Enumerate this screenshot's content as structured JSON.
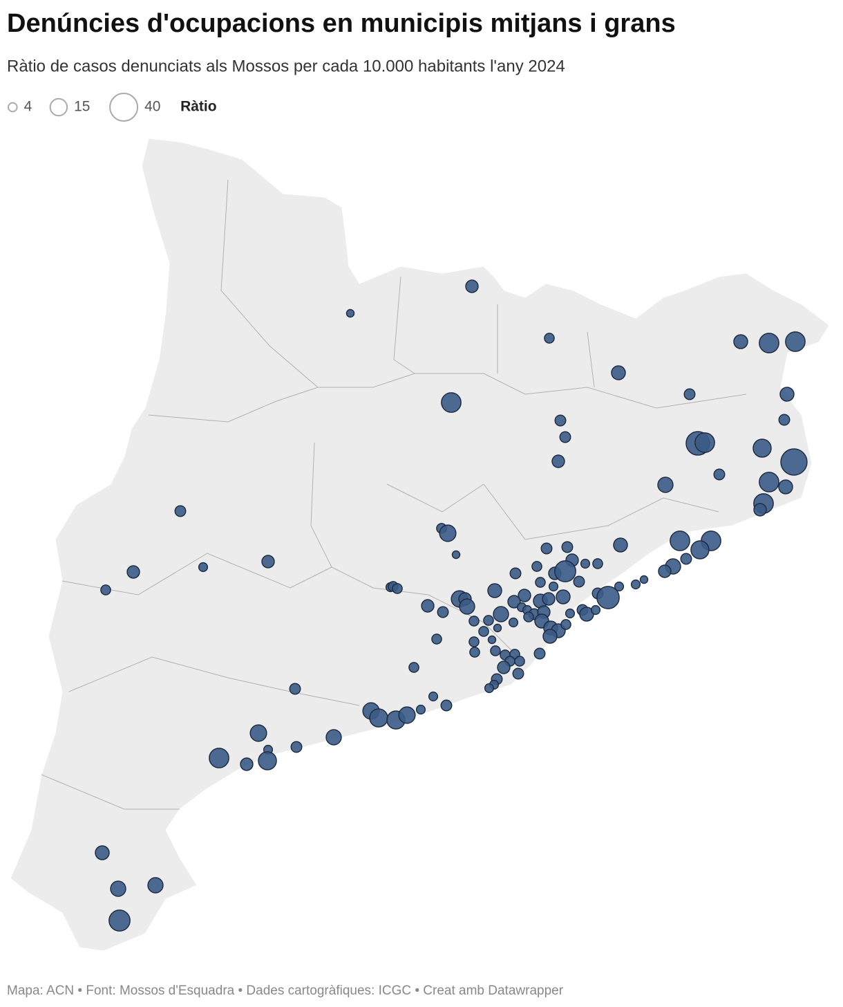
{
  "chart_data": {
    "type": "bubble-map",
    "title": "Denúncies d'ocupacions en municipis mitjans i grans",
    "subtitle": "Ràtio de casos denunciats als Mossos per cada 10.000 habitants l'any 2024",
    "size_legend": {
      "title": "Ràtio",
      "values": [
        4,
        15,
        40
      ]
    },
    "color": "#3b5b87",
    "values": [
      8,
      3,
      5,
      10,
      20,
      20,
      10,
      20,
      6,
      10,
      6,
      6,
      6,
      29,
      20,
      17,
      36,
      8,
      6,
      12,
      20,
      10,
      20,
      8,
      6,
      5,
      14,
      20,
      20,
      17,
      10,
      6,
      6,
      3,
      8,
      8,
      4,
      5,
      8,
      4,
      6,
      12,
      8,
      3,
      4,
      4,
      6,
      5,
      8,
      23,
      6,
      5,
      5,
      4,
      5,
      5,
      4,
      10,
      14,
      8,
      12,
      8,
      8,
      8,
      10,
      8,
      10,
      6,
      26,
      6,
      12,
      4,
      4,
      6,
      8,
      5,
      10,
      4,
      6,
      10,
      4,
      5,
      5,
      3,
      4,
      5,
      10,
      10,
      5,
      10,
      5,
      5,
      5,
      3,
      5,
      6,
      5,
      5,
      5,
      5,
      8,
      5,
      6,
      6,
      4,
      4,
      6,
      4,
      6,
      4,
      14,
      17,
      17,
      14,
      14,
      12,
      6,
      4,
      20,
      8,
      17,
      10,
      12,
      12,
      23
    ],
    "source": "Mapa: ACN • Font: Mossos d'Esquadra • Dades cartogràfiques: ICGC  • Creat amb Datawrapper"
  }
}
